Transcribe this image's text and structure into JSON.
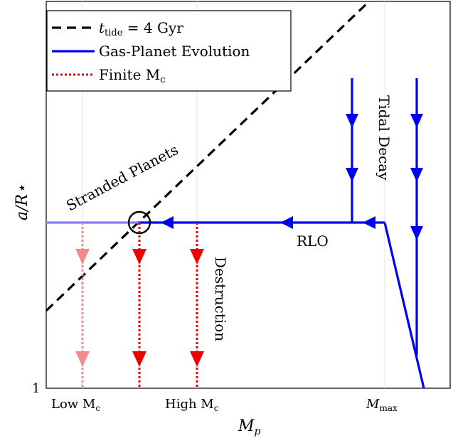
{
  "axes": {
    "xlabel_main": "M",
    "xlabel_sub": "p",
    "ylabel": "a/R⋆",
    "ytick": "1",
    "xticks": {
      "low": {
        "text": "Low M",
        "sub": "c"
      },
      "high": {
        "text": "High M",
        "sub": "c"
      },
      "max": {
        "text": "M",
        "sub": "max"
      }
    }
  },
  "legend": {
    "tide": {
      "main": "t",
      "sub": "tide",
      "rest": " = 4 Gyr"
    },
    "gas": "Gas-Planet Evolution",
    "finite": {
      "main": "Finite M",
      "sub": "c"
    }
  },
  "annotations": {
    "stranded": "Stranded Planets",
    "tidal_decay": "Tidal Decay",
    "rlo": "RLO",
    "destruction": "Destruction"
  },
  "colors": {
    "evolution": "#0000ee",
    "evolution_faded": "#8080f4",
    "finite": "#ee0000",
    "finite_faded": "#f48a8a",
    "tide_line": "#000000"
  }
}
